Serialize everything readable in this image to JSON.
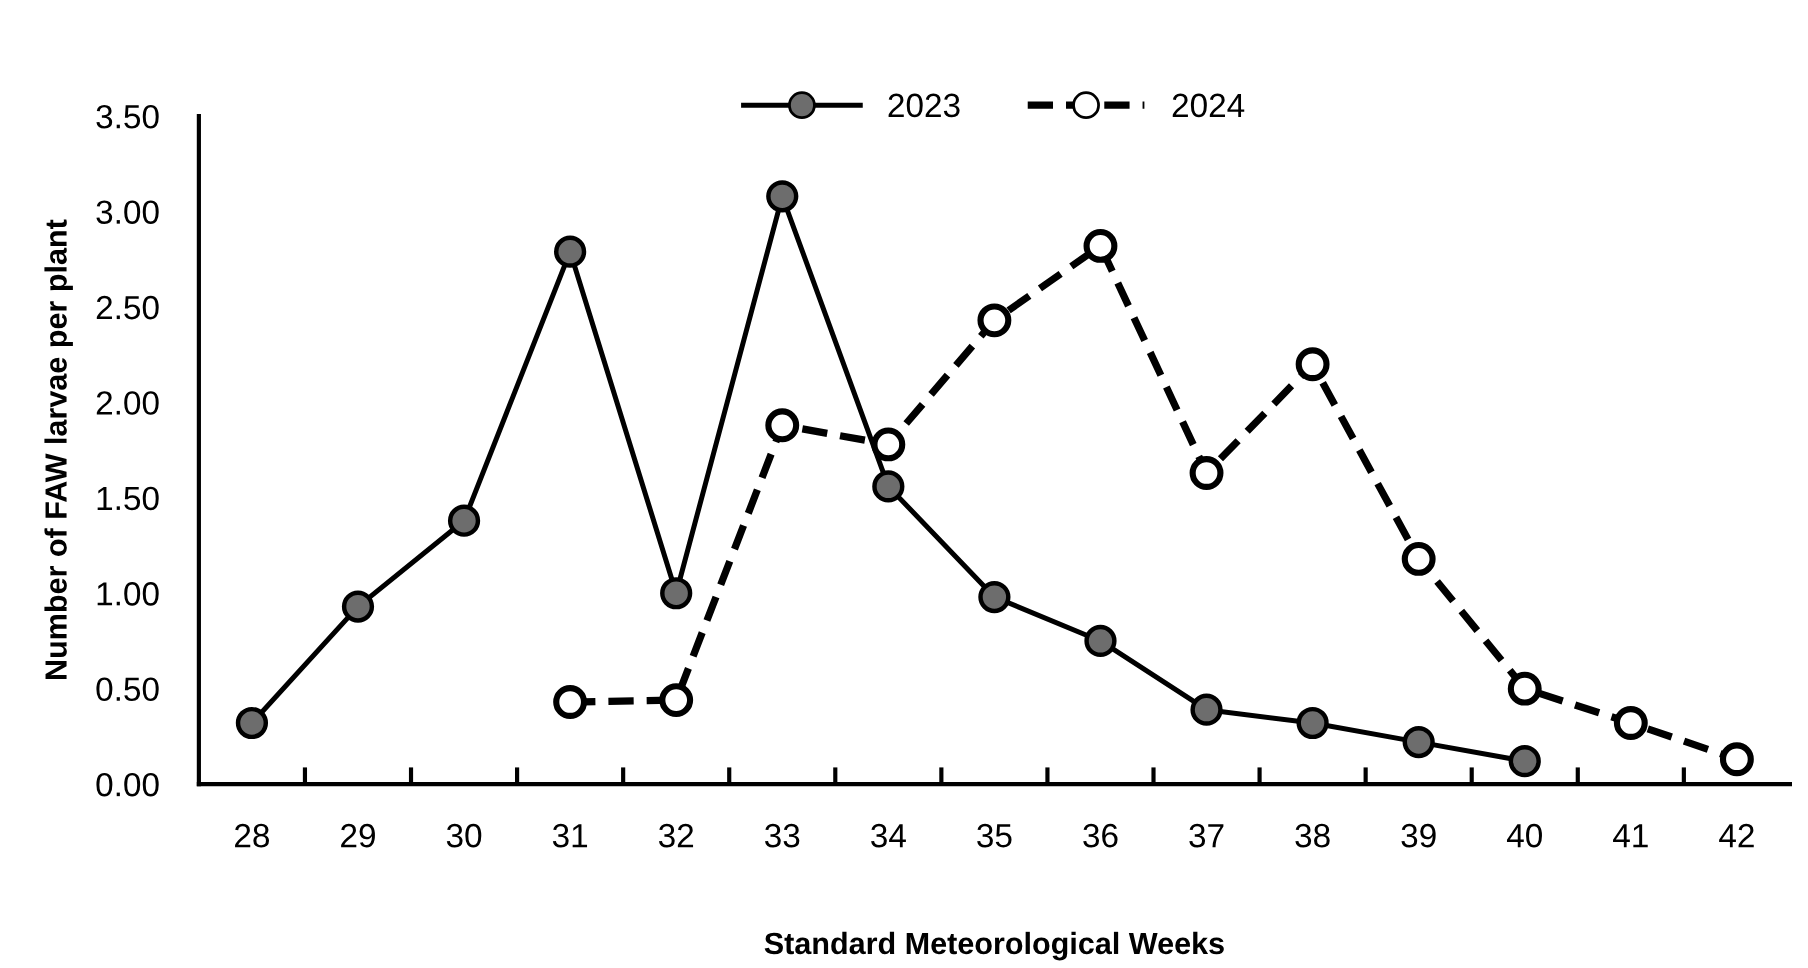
{
  "chart_data": {
    "type": "line",
    "xlabel": "Standard Meteorological Weeks",
    "ylabel": "Number of FAW larvae per plant",
    "categories": [
      "28",
      "29",
      "30",
      "31",
      "32",
      "33",
      "34",
      "35",
      "36",
      "37",
      "38",
      "39",
      "40",
      "41",
      "42"
    ],
    "ylim": [
      0,
      3.5
    ],
    "yticks": [
      {
        "value": 0,
        "label": "0.00"
      },
      {
        "value": 0.5,
        "label": "0.50"
      },
      {
        "value": 1,
        "label": "1.00"
      },
      {
        "value": 1.5,
        "label": "1.50"
      },
      {
        "value": 2,
        "label": "2.00"
      },
      {
        "value": 2.5,
        "label": "2.50"
      },
      {
        "value": 3,
        "label": "3.00"
      },
      {
        "value": 3.5,
        "label": "3.50"
      }
    ],
    "series": [
      {
        "name": "2023",
        "color": "#000000",
        "line_style": "solid",
        "marker": "circle",
        "colors": [
          "#6d6d6d",
          "#6d6d6d",
          "#6d6d6d",
          "#6d6d6d",
          "#6d6d6d",
          "#6d6d6d",
          "#6d6d6d",
          "#6d6d6d",
          "#6d6d6d",
          "#6d6d6d",
          "#6d6d6d",
          "#6d6d6d",
          "#6d6d6d",
          null,
          null
        ],
        "values": [
          0.32,
          0.93,
          1.38,
          2.79,
          1.0,
          3.08,
          1.56,
          0.98,
          0.75,
          0.39,
          0.32,
          0.22,
          0.12,
          null,
          null
        ]
      },
      {
        "name": "2024",
        "color": "#000000",
        "line_style": "dashed",
        "marker": "circle",
        "colors": [
          null,
          null,
          null,
          "#ffffff",
          "#ffffff",
          "#ffffff",
          "#ffffff",
          "#ffffff",
          "#ffffff",
          "#ffffff",
          "#ffffff",
          "#ffffff",
          "#ffffff",
          "#ffffff",
          "#ffffff"
        ],
        "values": [
          null,
          null,
          null,
          0.43,
          0.44,
          1.88,
          1.78,
          2.43,
          2.82,
          1.63,
          2.2,
          1.18,
          0.5,
          0.32,
          0.13
        ]
      }
    ],
    "grid": false,
    "legend": "top"
  }
}
